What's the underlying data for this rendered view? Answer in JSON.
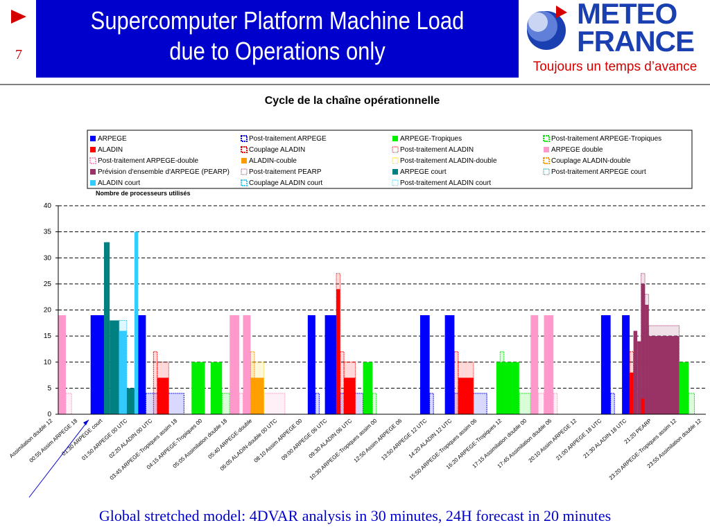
{
  "slide": {
    "number": "7",
    "title_line1": "Supercomputer Platform Machine Load",
    "title_line2": "due to Operations only",
    "caption": "Global stretched model: 4DVAR analysis in 30 minutes, 24H forecast in 20 minutes"
  },
  "logo": {
    "line1": "METEO",
    "line2": "FRANCE",
    "tagline": "Toujours un temps d’avance"
  },
  "colors": {
    "title_bg": "#0000cc",
    "logo_blue": "#1a3fb0",
    "accent_red": "#d40000"
  },
  "chart_data": {
    "type": "bar",
    "title": "Cycle de la chaîne opérationnelle",
    "ylabel": "Nombre de processeurs utilisés",
    "xlabel": "",
    "ylim": [
      0,
      40
    ],
    "yticks": [
      0,
      5,
      10,
      15,
      20,
      25,
      30,
      35,
      40
    ],
    "grid": "horizontal dashed",
    "legend_placement": "top",
    "legend": [
      {
        "name": "ARPEGE",
        "color": "#0000ff",
        "pattern": "solid"
      },
      {
        "name": "Post-traitement ARPEGE",
        "color": "#0000ff",
        "pattern": "hatched"
      },
      {
        "name": "ARPEGE-Tropiques",
        "color": "#00ee00",
        "pattern": "solid"
      },
      {
        "name": "Post-traitement ARPEGE-Tropiques",
        "color": "#00ee00",
        "pattern": "hatched"
      },
      {
        "name": "ALADIN",
        "color": "#ff0000",
        "pattern": "solid"
      },
      {
        "name": "Couplage ALADIN",
        "color": "#ff0000",
        "pattern": "hatched"
      },
      {
        "name": "Post-traitement ALADIN",
        "color": "#ff0000",
        "pattern": "dotted"
      },
      {
        "name": "ARPEGE double",
        "color": "#ff99cc",
        "pattern": "solid"
      },
      {
        "name": "Post-traitement ARPEGE-double",
        "color": "#ff99cc",
        "pattern": "hatched"
      },
      {
        "name": "ALADIN-couble",
        "color": "#ff9900",
        "pattern": "solid"
      },
      {
        "name": "Post-traitement ALADIN-double",
        "color": "#ffcc00",
        "pattern": "dotted"
      },
      {
        "name": "Couplage ALADIN-double",
        "color": "#ff9900",
        "pattern": "hatched"
      },
      {
        "name": "Prévision d'ensemble d'ARPEGE (PEARP)",
        "color": "#993366",
        "pattern": "solid"
      },
      {
        "name": "Post-traitement PEARP",
        "color": "#993366",
        "pattern": "dotted"
      },
      {
        "name": "ARPEGE court",
        "color": "#008080",
        "pattern": "solid"
      },
      {
        "name": "Post-traitement ARPEGE court",
        "color": "#008080",
        "pattern": "dotted"
      },
      {
        "name": "ALADIN court",
        "color": "#33ccff",
        "pattern": "solid"
      },
      {
        "name": "Couplage ALADIN court",
        "color": "#33ccff",
        "pattern": "hatched"
      },
      {
        "name": "Post-traitement ALADIN court",
        "color": "#33ccff",
        "pattern": "dotted"
      }
    ],
    "xtick_labels": [
      "Assimilation double 12",
      "00:55 Assim ARPEGE 18",
      "01:30 ARPEGE court",
      "01:50 ARPEGE 00 UTC",
      "02:20 ALADIN 00 UTC",
      "03:45 ARPEGE-Tropiques assim 18",
      "04:15 ARPEGE-Tropiques 00",
      "05:05 Assimilation double 18",
      "05:40 ARPEGE-double",
      "06:05 ALADIN-double 00 UTC",
      "08:10 Assim ARPEGE 00",
      "09:00 ARPEGE 06 UTC",
      "09:30 ALADIN 06 UTC",
      "10:30 ARPEGE-Tropiques assim 00",
      "12:50 Assim ARPEGE 06",
      "13:50 ARPEGE 12 UTC",
      "14:20 ALADIN 12 UTC",
      "15:50 ARPEGE-Tropiques assim 06",
      "16:20 ARPEGE-Tropiques 12",
      "17:15 Assimilation double 00",
      "17:45 Assimilation double 06",
      "20:10 Assim ARPEGE 12",
      "21:00 ARPEGE 18 UTC",
      "21:30 ALADIN 18 UTC",
      "21:20 PEARP",
      "23:20 ARPEGE-Tropiques assim 12",
      "23:55 Assimilation double 12"
    ],
    "segments": [
      {
        "series": "ARPEGE double",
        "start": 0,
        "end": 4,
        "value": 19
      },
      {
        "series": "Post-traitement ARPEGE-double",
        "start": 4,
        "end": 7,
        "value": 4
      },
      {
        "series": "ARPEGE",
        "start": 17,
        "end": 25,
        "value": 19
      },
      {
        "series": "Post-traitement ARPEGE",
        "start": 25,
        "end": 29,
        "value": 4
      },
      {
        "series": "ARPEGE court",
        "start": 24,
        "end": 27,
        "value": 33
      },
      {
        "series": "ARPEGE court",
        "start": 27,
        "end": 32,
        "value": 18
      },
      {
        "series": "ALADIN court",
        "start": 32,
        "end": 36,
        "value": 16
      },
      {
        "series": "Couplage ALADIN court",
        "start": 32,
        "end": 36,
        "value": 18
      },
      {
        "series": "ARPEGE court",
        "start": 36,
        "end": 42,
        "value": 5
      },
      {
        "series": "ALADIN court",
        "start": 40,
        "end": 42,
        "value": 35
      },
      {
        "series": "ARPEGE",
        "start": 42,
        "end": 46,
        "value": 19
      },
      {
        "series": "Post-traitement ARPEGE",
        "start": 46,
        "end": 66,
        "value": 4
      },
      {
        "series": "Couplage ALADIN",
        "start": 50,
        "end": 52,
        "value": 12
      },
      {
        "series": "ALADIN",
        "start": 52,
        "end": 58,
        "value": 7
      },
      {
        "series": "Post-traitement ALADIN",
        "start": 52,
        "end": 58,
        "value": 10
      },
      {
        "series": "ARPEGE-Tropiques",
        "start": 70,
        "end": 77,
        "value": 10
      },
      {
        "series": "ARPEGE-Tropiques",
        "start": 80,
        "end": 86,
        "value": 10
      },
      {
        "series": "Post-traitement ARPEGE-Tropiques",
        "start": 86,
        "end": 90,
        "value": 4
      },
      {
        "series": "ARPEGE double",
        "start": 90,
        "end": 95,
        "value": 19
      },
      {
        "series": "Post-traitement ARPEGE-double",
        "start": 95,
        "end": 97,
        "value": 4
      },
      {
        "series": "ARPEGE double",
        "start": 97,
        "end": 101,
        "value": 19
      },
      {
        "series": "Post-traitement ARPEGE-double",
        "start": 101,
        "end": 119,
        "value": 4
      },
      {
        "series": "ALADIN-couble",
        "start": 101,
        "end": 108,
        "value": 7
      },
      {
        "series": "Post-traitement ALADIN-double",
        "start": 101,
        "end": 108,
        "value": 10
      },
      {
        "series": "Couplage ALADIN-double",
        "start": 101,
        "end": 103,
        "value": 12
      },
      {
        "series": "ARPEGE",
        "start": 131,
        "end": 135,
        "value": 19
      },
      {
        "series": "Post-traitement ARPEGE",
        "start": 135,
        "end": 137,
        "value": 4
      },
      {
        "series": "ARPEGE",
        "start": 140,
        "end": 148,
        "value": 19
      },
      {
        "series": "ALADIN",
        "start": 146,
        "end": 148,
        "value": 24
      },
      {
        "series": "Post-traitement ALADIN",
        "start": 146,
        "end": 148,
        "value": 27
      },
      {
        "series": "Post-traitement ARPEGE",
        "start": 148,
        "end": 160,
        "value": 4
      },
      {
        "series": "Couplage ALADIN",
        "start": 148,
        "end": 150,
        "value": 12
      },
      {
        "series": "ALADIN",
        "start": 150,
        "end": 156,
        "value": 7
      },
      {
        "series": "Post-traitement ALADIN",
        "start": 150,
        "end": 156,
        "value": 10
      },
      {
        "series": "ARPEGE-Tropiques",
        "start": 160,
        "end": 165,
        "value": 10
      },
      {
        "series": "Post-traitement ARPEGE-Tropiques",
        "start": 165,
        "end": 167,
        "value": 4
      },
      {
        "series": "ARPEGE",
        "start": 190,
        "end": 195,
        "value": 19
      },
      {
        "series": "Post-traitement ARPEGE",
        "start": 195,
        "end": 197,
        "value": 4
      },
      {
        "series": "ARPEGE",
        "start": 203,
        "end": 208,
        "value": 19
      },
      {
        "series": "Post-traitement ARPEGE",
        "start": 208,
        "end": 225,
        "value": 4
      },
      {
        "series": "Couplage ALADIN",
        "start": 208,
        "end": 210,
        "value": 12
      },
      {
        "series": "ALADIN",
        "start": 210,
        "end": 218,
        "value": 7
      },
      {
        "series": "Post-traitement ALADIN",
        "start": 210,
        "end": 218,
        "value": 10
      },
      {
        "series": "ARPEGE-Tropiques",
        "start": 230,
        "end": 242,
        "value": 10
      },
      {
        "series": "Post-traitement ARPEGE-Tropiques",
        "start": 232,
        "end": 234,
        "value": 12
      },
      {
        "series": "Post-traitement ARPEGE-Tropiques",
        "start": 242,
        "end": 248,
        "value": 4
      },
      {
        "series": "ARPEGE double",
        "start": 248,
        "end": 252,
        "value": 19
      },
      {
        "series": "Post-traitement ARPEGE-double",
        "start": 252,
        "end": 255,
        "value": 4
      },
      {
        "series": "ARPEGE double",
        "start": 255,
        "end": 260,
        "value": 19
      },
      {
        "series": "Post-traitement ARPEGE-double",
        "start": 260,
        "end": 262,
        "value": 4
      },
      {
        "series": "ARPEGE",
        "start": 285,
        "end": 290,
        "value": 19
      },
      {
        "series": "Post-traitement ARPEGE",
        "start": 290,
        "end": 292,
        "value": 4
      },
      {
        "series": "ARPEGE",
        "start": 296,
        "end": 300,
        "value": 19
      },
      {
        "series": "Post-traitement ARPEGE",
        "start": 300,
        "end": 316,
        "value": 4
      },
      {
        "series": "ALADIN",
        "start": 300,
        "end": 302,
        "value": 8
      },
      {
        "series": "Couplage ALADIN",
        "start": 300,
        "end": 302,
        "value": 12
      },
      {
        "series": "Prévision d'ensemble d'ARPEGE (PEARP)",
        "start": 302,
        "end": 304,
        "value": 16
      },
      {
        "series": "Prévision d'ensemble d'ARPEGE (PEARP)",
        "start": 304,
        "end": 306,
        "value": 14
      },
      {
        "series": "Prévision d'ensemble d'ARPEGE (PEARP)",
        "start": 306,
        "end": 308,
        "value": 25
      },
      {
        "series": "Post-traitement PEARP",
        "start": 306,
        "end": 308,
        "value": 27
      },
      {
        "series": "ALADIN",
        "start": 306,
        "end": 308,
        "value": 3
      },
      {
        "series": "Prévision d'ensemble d'ARPEGE (PEARP)",
        "start": 308,
        "end": 310,
        "value": 21
      },
      {
        "series": "Post-traitement PEARP",
        "start": 308,
        "end": 310,
        "value": 23
      },
      {
        "series": "Prévision d'ensemble d'ARPEGE (PEARP)",
        "start": 310,
        "end": 326,
        "value": 15
      },
      {
        "series": "Post-traitement PEARP",
        "start": 310,
        "end": 326,
        "value": 17
      },
      {
        "series": "ARPEGE-Tropiques",
        "start": 326,
        "end": 331,
        "value": 10
      },
      {
        "series": "Post-traitement ARPEGE-Tropiques",
        "start": 331,
        "end": 334,
        "value": 4
      }
    ],
    "x_extent": [
      0,
      340
    ]
  }
}
